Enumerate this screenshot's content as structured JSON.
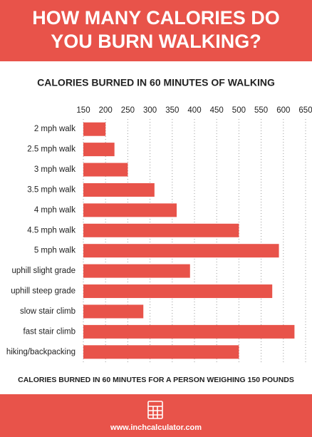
{
  "header": {
    "title_lines": [
      "HOW MANY CALORIES DO",
      "YOU BURN WALKING?"
    ]
  },
  "chart_data": {
    "type": "bar",
    "orientation": "horizontal",
    "title": "CALORIES BURNED IN 60 MINUTES OF WALKING",
    "categories": [
      "2 mph walk",
      "2.5 mph walk",
      "3 mph walk",
      "3.5 mph walk",
      "4 mph walk",
      "4.5 mph walk",
      "5 mph walk",
      "uphill slight grade",
      "uphill steep grade",
      "slow stair climb",
      "fast stair climb",
      "hiking/backpacking"
    ],
    "values": [
      200,
      220,
      250,
      310,
      360,
      500,
      590,
      390,
      575,
      285,
      625,
      500
    ],
    "color": "#e8534a",
    "xlim": [
      150,
      650
    ],
    "xticks": [
      150,
      200,
      250,
      300,
      350,
      400,
      450,
      500,
      550,
      600,
      650
    ],
    "grid": true,
    "note": "CALORIES BURNED IN 60 MINUTES FOR A PERSON WEIGHING 150 POUNDS"
  },
  "footer": {
    "url": "www.inchcalculator.com"
  }
}
